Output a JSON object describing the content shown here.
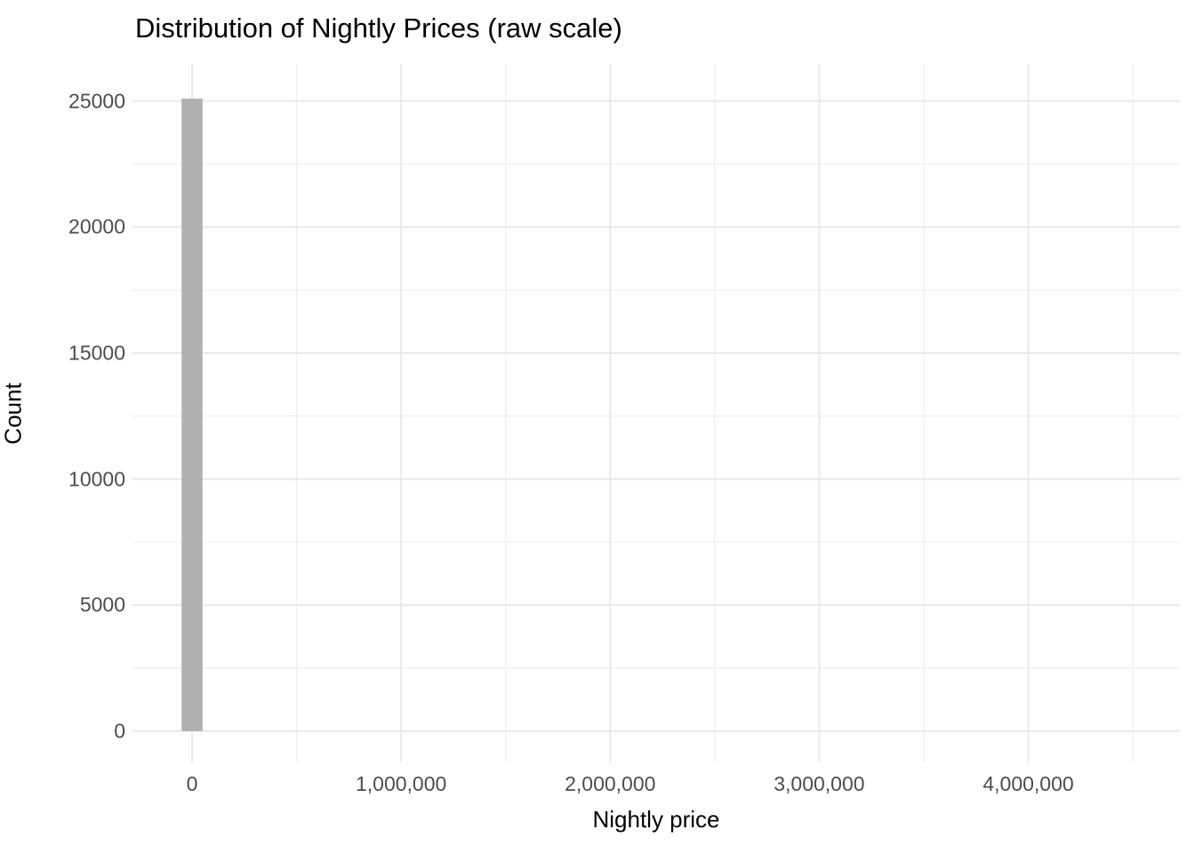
{
  "chart_data": {
    "type": "bar",
    "subtype": "histogram",
    "title": "Distribution of Nightly Prices (raw scale)",
    "xlabel": "Nightly price",
    "ylabel": "Count",
    "xlim": [
      -285000,
      4725000
    ],
    "ylim": [
      -1240,
      26470
    ],
    "grid": "on",
    "legend": "none",
    "x_ticks": [
      {
        "value": 0,
        "label": "0"
      },
      {
        "value": 1000000,
        "label": "1,000,000"
      },
      {
        "value": 2000000,
        "label": "2,000,000"
      },
      {
        "value": 3000000,
        "label": "3,000,000"
      },
      {
        "value": 4000000,
        "label": "4,000,000"
      }
    ],
    "y_ticks": [
      {
        "value": 0,
        "label": "0"
      },
      {
        "value": 5000,
        "label": "5000"
      },
      {
        "value": 10000,
        "label": "10000"
      },
      {
        "value": 15000,
        "label": "15000"
      },
      {
        "value": 20000,
        "label": "20000"
      },
      {
        "value": 25000,
        "label": "25000"
      }
    ],
    "x_minor_gridlines": [
      500000,
      1500000,
      2500000,
      3500000,
      4500000
    ],
    "y_minor_gridlines": [
      2500,
      7500,
      12500,
      17500,
      22500
    ],
    "bars": [
      {
        "x_center": 0,
        "bin_width": 100000,
        "count": 25100
      }
    ],
    "colors": {
      "bar_fill": "#b0b0b0",
      "grid_major": "#e9e9e9",
      "grid_minor": "#f1f1f1",
      "tick_label": "#4d4d4d",
      "axis_title": "#000000",
      "title": "#000000",
      "background": "#ffffff"
    }
  }
}
